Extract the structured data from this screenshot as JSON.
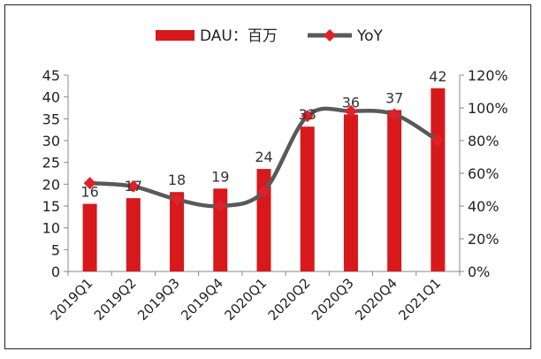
{
  "chart_data": {
    "type": "bar",
    "categories": [
      "2019Q1",
      "2019Q2",
      "2019Q3",
      "2019Q4",
      "2020Q1",
      "2020Q2",
      "2020Q3",
      "2020Q4",
      "2021Q1"
    ],
    "series": [
      {
        "name": "DAU：百万",
        "type": "bar",
        "axis": "left",
        "values": [
          15.5,
          16.8,
          18.2,
          19.0,
          23.5,
          33.2,
          36.0,
          37.0,
          42.0
        ],
        "data_labels": [
          "16",
          "17",
          "18",
          "19",
          "24",
          "33",
          "36",
          "37",
          "42"
        ]
      },
      {
        "name": "YoY",
        "type": "line",
        "axis": "right",
        "values": [
          0.54,
          0.52,
          0.44,
          0.4,
          0.49,
          0.95,
          0.98,
          0.96,
          0.8
        ]
      }
    ],
    "left_axis": {
      "min": 0,
      "max": 45,
      "ticks": [
        "0",
        "5",
        "10",
        "15",
        "20",
        "25",
        "30",
        "35",
        "40",
        "45"
      ]
    },
    "right_axis": {
      "min": 0,
      "max": 1.2,
      "ticks": [
        "0%",
        "20%",
        "40%",
        "60%",
        "80%",
        "100%",
        "120%"
      ]
    },
    "grid": false,
    "legend_position": "top",
    "colors": {
      "bar": "#d7191c",
      "line": "#595959",
      "marker": "#e0202a"
    }
  }
}
